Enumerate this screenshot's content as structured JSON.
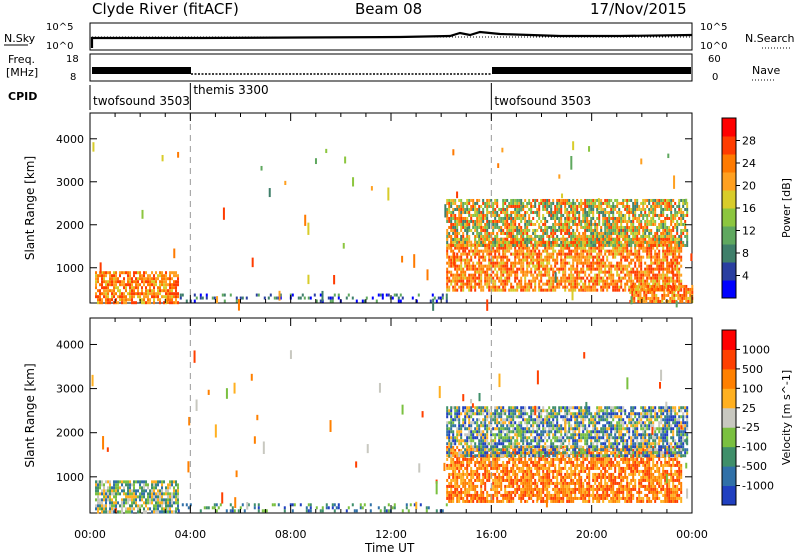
{
  "header": {
    "station": "Clyde River (fitACF)",
    "beam": "Beam 08",
    "date": "17/Nov/2015"
  },
  "top_panel": {
    "nsky_label": "N.Sky",
    "nsearch_label": "N.Search",
    "freq_label_1": "Freq.",
    "freq_label_2": "[MHz]",
    "nave_label": "Nave",
    "cpid_label": "CPID",
    "nsky_ticks": [
      "10^5",
      "10^0"
    ],
    "nsearch_ticks": [
      "10^5",
      "10^0"
    ],
    "freq_ticks": [
      "18",
      "8"
    ],
    "nave_ticks": [
      "60",
      "0"
    ],
    "cpid_segments": [
      {
        "label": "twofsound 3503",
        "start_h": 0,
        "end_h": 4
      },
      {
        "label": "themis 3300",
        "start_h": 4,
        "end_h": 16
      },
      {
        "label": "twofsound 3503",
        "start_h": 16,
        "end_h": 24
      }
    ]
  },
  "chart_data": [
    {
      "type": "heatmap",
      "name": "Power",
      "xlabel": "",
      "ylabel": "Slant Range [km]",
      "xlim": [
        0,
        24
      ],
      "ylim": [
        180,
        4600
      ],
      "yticks": [
        "1000",
        "2000",
        "3000",
        "4000"
      ],
      "colorbar_label": "Power [dB]",
      "colorbar_ticks": [
        "28",
        "24",
        "20",
        "16",
        "12",
        "8",
        "4"
      ],
      "colorbar_colors": [
        "#0000ff",
        "#2a3fa0",
        "#3f7f6a",
        "#5fa85f",
        "#8cc63f",
        "#d8cc2a",
        "#ffa020",
        "#ff7a00",
        "#ff3c00",
        "#ff0000"
      ],
      "features": [
        {
          "t0": 0.2,
          "t1": 3.5,
          "r0": 200,
          "r1": 920,
          "level": "high"
        },
        {
          "t0": 14.2,
          "t1": 23.6,
          "r0": 450,
          "r1": 1700,
          "level": "high"
        },
        {
          "t0": 14.2,
          "t1": 23.8,
          "r0": 1500,
          "r1": 2600,
          "level": "medium"
        },
        {
          "t0": 3.5,
          "t1": 14.2,
          "r0": 200,
          "r1": 400,
          "level": "low"
        },
        {
          "t0": 21.5,
          "t1": 24,
          "r0": 200,
          "r1": 600,
          "level": "high"
        }
      ]
    },
    {
      "type": "heatmap",
      "name": "Velocity",
      "xlabel": "Time UT",
      "ylabel": "Slant Range [km]",
      "xlim": [
        0,
        24
      ],
      "ylim": [
        180,
        4600
      ],
      "xticks": [
        "00:00",
        "04:00",
        "08:00",
        "12:00",
        "16:00",
        "20:00",
        "00:00"
      ],
      "yticks": [
        "1000",
        "2000",
        "3000",
        "4000"
      ],
      "colorbar_label": "Velocity [m s^-1]",
      "colorbar_ticks": [
        "1000",
        "500",
        "100",
        "25",
        "-25",
        "-100",
        "-500",
        "-1000"
      ],
      "colorbar_colors": [
        "#2040c0",
        "#3070a8",
        "#3f8f6a",
        "#7ac040",
        "#c8c8c0",
        "#ffb020",
        "#ff8000",
        "#ff4000",
        "#ff0000"
      ],
      "features": [
        {
          "t0": 0.2,
          "t1": 3.5,
          "r0": 200,
          "r1": 920,
          "level": "mixed-green-gray"
        },
        {
          "t0": 14.2,
          "t1": 23.6,
          "r0": 450,
          "r1": 1700,
          "level": "orange"
        },
        {
          "t0": 14.2,
          "t1": 23.8,
          "r0": 1500,
          "r1": 2600,
          "level": "mixed-gray-blue"
        },
        {
          "t0": 3.5,
          "t1": 14.2,
          "r0": 200,
          "r1": 400,
          "level": "low"
        }
      ]
    }
  ]
}
